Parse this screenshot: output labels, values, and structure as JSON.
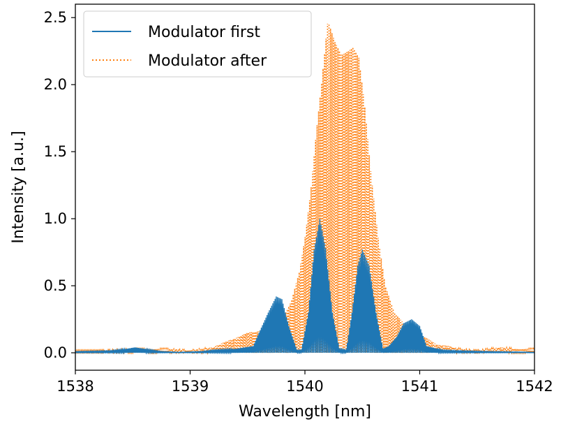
{
  "chart_data": {
    "type": "line",
    "xlabel": "Wavelength [nm]",
    "ylabel": "Intensity [a.u.]",
    "xlim": [
      1538,
      1542
    ],
    "ylim": [
      -0.13,
      2.6
    ],
    "xticks": [
      1538,
      1539,
      1540,
      1541,
      1542
    ],
    "xtick_labels": [
      "1538",
      "1539",
      "1540",
      "1541",
      "1542"
    ],
    "yticks": [
      0.0,
      0.5,
      1.0,
      1.5,
      2.0,
      2.5
    ],
    "ytick_labels": [
      "0.0",
      "0.5",
      "1.0",
      "1.5",
      "2.0",
      "2.5"
    ],
    "grid": false,
    "legend_position": "top-left",
    "series": [
      {
        "name": "Modulator first",
        "color": "#1f77b4",
        "style": "solid",
        "fringe_period_nm": 0.01,
        "envelope": [
          [
            1538.0,
            0.01
          ],
          [
            1538.3,
            0.015
          ],
          [
            1538.45,
            0.03
          ],
          [
            1538.52,
            0.04
          ],
          [
            1538.6,
            0.03
          ],
          [
            1538.75,
            0.01
          ],
          [
            1538.9,
            0.005
          ],
          [
            1539.1,
            0.01
          ],
          [
            1539.2,
            0.02
          ],
          [
            1539.4,
            0.03
          ],
          [
            1539.55,
            0.05
          ],
          [
            1539.6,
            0.15
          ],
          [
            1539.68,
            0.3
          ],
          [
            1539.75,
            0.42
          ],
          [
            1539.8,
            0.4
          ],
          [
            1539.86,
            0.2
          ],
          [
            1539.93,
            0.02
          ],
          [
            1539.97,
            0.02
          ],
          [
            1540.03,
            0.3
          ],
          [
            1540.08,
            0.77
          ],
          [
            1540.13,
            1.0
          ],
          [
            1540.18,
            0.78
          ],
          [
            1540.24,
            0.3
          ],
          [
            1540.3,
            0.03
          ],
          [
            1540.36,
            0.02
          ],
          [
            1540.41,
            0.3
          ],
          [
            1540.46,
            0.65
          ],
          [
            1540.5,
            0.77
          ],
          [
            1540.56,
            0.65
          ],
          [
            1540.62,
            0.3
          ],
          [
            1540.68,
            0.03
          ],
          [
            1540.73,
            0.05
          ],
          [
            1540.8,
            0.12
          ],
          [
            1540.86,
            0.22
          ],
          [
            1540.93,
            0.25
          ],
          [
            1541.0,
            0.2
          ],
          [
            1541.06,
            0.05
          ],
          [
            1541.2,
            0.02
          ],
          [
            1541.35,
            0.015
          ],
          [
            1541.6,
            0.01
          ],
          [
            1542.0,
            0.005
          ]
        ]
      },
      {
        "name": "Modulator after",
        "color": "#ff7f0e",
        "style": "dotted",
        "fringe_period_nm": 0.013,
        "envelope": [
          [
            1538.0,
            0.02
          ],
          [
            1538.2,
            0.02
          ],
          [
            1538.5,
            0.03
          ],
          [
            1538.8,
            0.03
          ],
          [
            1539.0,
            0.02
          ],
          [
            1539.2,
            0.04
          ],
          [
            1539.3,
            0.08
          ],
          [
            1539.4,
            0.11
          ],
          [
            1539.5,
            0.15
          ],
          [
            1539.6,
            0.16
          ],
          [
            1539.7,
            0.18
          ],
          [
            1539.8,
            0.25
          ],
          [
            1539.88,
            0.38
          ],
          [
            1539.95,
            0.6
          ],
          [
            1540.0,
            0.85
          ],
          [
            1540.05,
            1.2
          ],
          [
            1540.1,
            1.65
          ],
          [
            1540.15,
            2.05
          ],
          [
            1540.2,
            2.48
          ],
          [
            1540.26,
            2.32
          ],
          [
            1540.32,
            2.22
          ],
          [
            1540.38,
            2.25
          ],
          [
            1540.42,
            2.28
          ],
          [
            1540.47,
            2.2
          ],
          [
            1540.52,
            1.85
          ],
          [
            1540.58,
            1.3
          ],
          [
            1540.64,
            0.85
          ],
          [
            1540.7,
            0.5
          ],
          [
            1540.78,
            0.3
          ],
          [
            1540.86,
            0.22
          ],
          [
            1540.94,
            0.15
          ],
          [
            1541.04,
            0.12
          ],
          [
            1541.15,
            0.06
          ],
          [
            1541.25,
            0.05
          ],
          [
            1541.35,
            0.03
          ],
          [
            1541.5,
            0.02
          ],
          [
            1541.7,
            0.04
          ],
          [
            1541.85,
            0.03
          ],
          [
            1542.0,
            0.03
          ]
        ]
      }
    ]
  }
}
